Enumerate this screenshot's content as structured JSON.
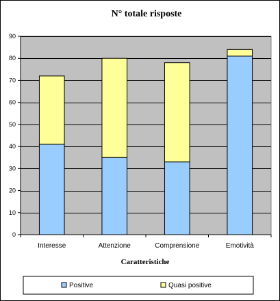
{
  "chart_data": {
    "type": "bar",
    "stacked": true,
    "title": "N° totale risposte",
    "xlabel": "Caratteristiche",
    "ylabel": "",
    "categories": [
      "Interesse",
      "Attenzione",
      "Comprensione",
      "Emotività"
    ],
    "series": [
      {
        "name": "Positive",
        "values": [
          41,
          35,
          33,
          81
        ],
        "color": "#99ccff"
      },
      {
        "name": "Quasi positive",
        "values": [
          31,
          45,
          45,
          3
        ],
        "color": "#ffff99"
      }
    ],
    "ylim": [
      0,
      90
    ],
    "yticks": [
      0,
      10,
      20,
      30,
      40,
      50,
      60,
      70,
      80,
      90
    ],
    "grid": true,
    "plot_background": "#c0c0c0",
    "legend_position": "bottom"
  }
}
